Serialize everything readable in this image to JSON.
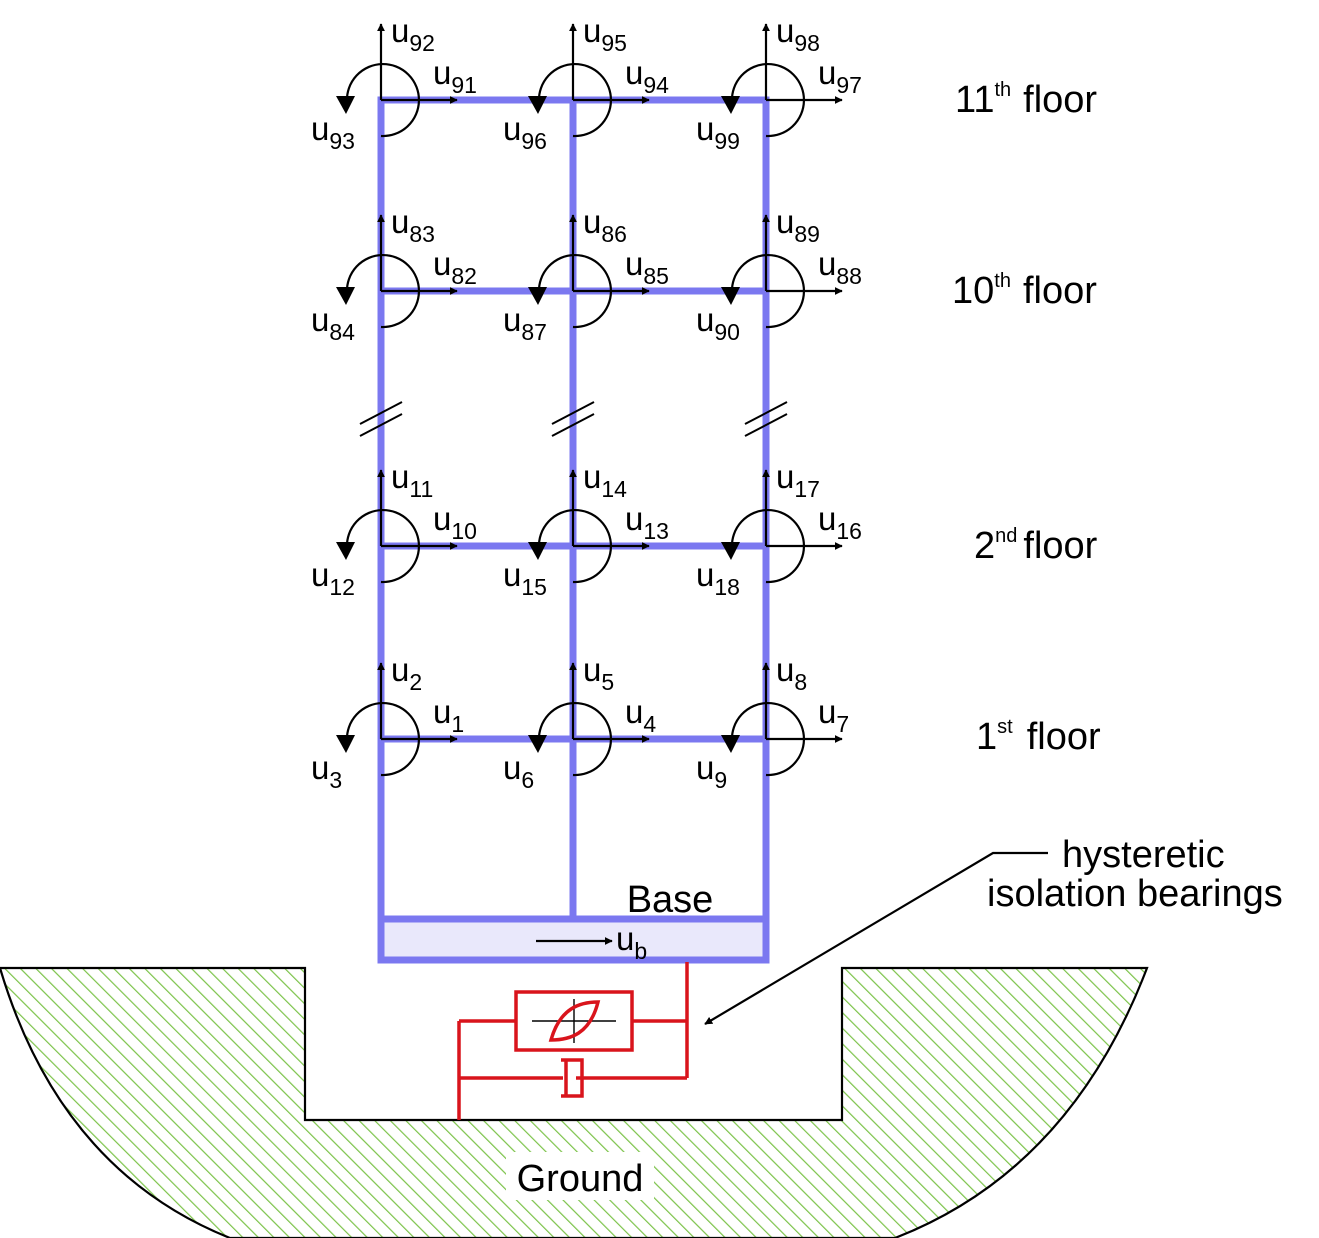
{
  "colors": {
    "frame": "#7b78f0",
    "base_fill": "#e9e8fb",
    "bearing": "#d9141c",
    "ground_hatch": "#7cc34a",
    "text": "#000000"
  },
  "floors": [
    {
      "id": "11",
      "ordinal": "11",
      "suffix": "th",
      "word": "floor"
    },
    {
      "id": "10",
      "ordinal": "10",
      "suffix": "th",
      "word": "floor"
    },
    {
      "id": "2",
      "ordinal": "2",
      "suffix": "nd",
      "word": "floor"
    },
    {
      "id": "1",
      "ordinal": "1",
      "suffix": "st",
      "word": "floor"
    }
  ],
  "dofs": {
    "floor11": [
      [
        "u",
        "91"
      ],
      [
        "u",
        "92"
      ],
      [
        "u",
        "93"
      ],
      [
        "u",
        "94"
      ],
      [
        "u",
        "95"
      ],
      [
        "u",
        "96"
      ],
      [
        "u",
        "97"
      ],
      [
        "u",
        "98"
      ],
      [
        "u",
        "99"
      ]
    ],
    "floor10": [
      [
        "u",
        "82"
      ],
      [
        "u",
        "83"
      ],
      [
        "u",
        "84"
      ],
      [
        "u",
        "85"
      ],
      [
        "u",
        "86"
      ],
      [
        "u",
        "87"
      ],
      [
        "u",
        "88"
      ],
      [
        "u",
        "89"
      ],
      [
        "u",
        "90"
      ]
    ],
    "floor2": [
      [
        "u",
        "10"
      ],
      [
        "u",
        "11"
      ],
      [
        "u",
        "12"
      ],
      [
        "u",
        "13"
      ],
      [
        "u",
        "14"
      ],
      [
        "u",
        "15"
      ],
      [
        "u",
        "16"
      ],
      [
        "u",
        "17"
      ],
      [
        "u",
        "18"
      ]
    ],
    "floor1": [
      [
        "u",
        "1"
      ],
      [
        "u",
        "2"
      ],
      [
        "u",
        "3"
      ],
      [
        "u",
        "4"
      ],
      [
        "u",
        "5"
      ],
      [
        "u",
        "6"
      ],
      [
        "u",
        "7"
      ],
      [
        "u",
        "8"
      ],
      [
        "u",
        "9"
      ]
    ]
  },
  "base": {
    "label": "Base",
    "dof_symbol": "u",
    "dof_sub": "b"
  },
  "bearing_label": {
    "line1": "hysteretic",
    "line2": "isolation bearings"
  },
  "ground_label": "Ground"
}
